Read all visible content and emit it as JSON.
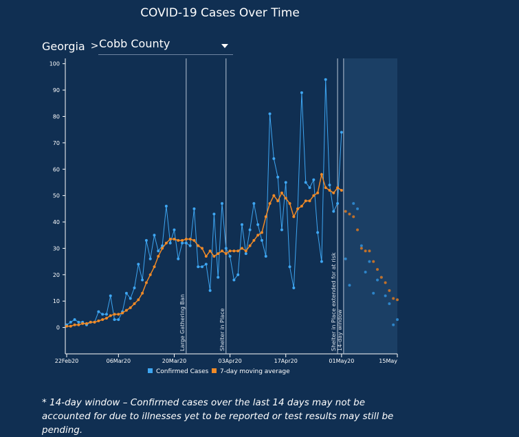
{
  "header": {
    "title": "COVID-19 Cases Over Time",
    "state": "Georgia",
    "separator": ">",
    "county": "Cobb County"
  },
  "footnote": "* 14-day window – Confirmed cases over the last 14 days may not be accounted for due to illnesses yet to be reported or test results may still be pending.",
  "colors": {
    "background": "#102f52",
    "confirmed": "#3ea6f2",
    "moving_avg": "#f08a27",
    "confirmed_faded": "#2d84c8",
    "moving_avg_faded": "#c0702a",
    "window_shade": "#1d4268"
  },
  "chart_data": {
    "type": "line",
    "x_type": "date",
    "start_date": "2020-02-22",
    "x": [
      "22Feb20",
      "23Feb20",
      "24Feb20",
      "25Feb20",
      "26Feb20",
      "27Feb20",
      "28Feb20",
      "29Feb20",
      "01Mar20",
      "02Mar20",
      "03Mar20",
      "04Mar20",
      "05Mar20",
      "06Mar20",
      "07Mar20",
      "08Mar20",
      "09Mar20",
      "10Mar20",
      "11Mar20",
      "12Mar20",
      "13Mar20",
      "14Mar20",
      "15Mar20",
      "16Mar20",
      "17Mar20",
      "18Mar20",
      "19Mar20",
      "20Mar20",
      "21Mar20",
      "22Mar20",
      "23Mar20",
      "24Mar20",
      "25Mar20",
      "26Mar20",
      "27Mar20",
      "28Mar20",
      "29Mar20",
      "30Mar20",
      "31Mar20",
      "01Apr20",
      "02Apr20",
      "03Apr20",
      "04Apr20",
      "05Apr20",
      "06Apr20",
      "07Apr20",
      "08Apr20",
      "09Apr20",
      "10Apr20",
      "11Apr20",
      "12Apr20",
      "13Apr20",
      "14Apr20",
      "15Apr20",
      "16Apr20",
      "17Apr20",
      "18Apr20",
      "19Apr20",
      "20Apr20",
      "21Apr20",
      "22Apr20",
      "23Apr20",
      "24Apr20",
      "25Apr20",
      "26Apr20",
      "27Apr20",
      "28Apr20",
      "29Apr20",
      "30Apr20",
      "01May20",
      "02May20",
      "03May20",
      "04May20",
      "05May20",
      "06May20",
      "07May20",
      "08May20",
      "09May20",
      "10May20",
      "11May20",
      "12May20",
      "13May20",
      "14May20",
      "15May20"
    ],
    "series": [
      {
        "name": "Confirmed Cases",
        "values": [
          1,
          2,
          3,
          2,
          2,
          1,
          2,
          2,
          6,
          5,
          5,
          12,
          3,
          3,
          6,
          13,
          11,
          15,
          24,
          18,
          33,
          26,
          35,
          29,
          31,
          46,
          32,
          37,
          26,
          32,
          32,
          31,
          45,
          23,
          23,
          24,
          14,
          43,
          19,
          47,
          30,
          27,
          18,
          20,
          39,
          28,
          37,
          47,
          39,
          33,
          27,
          81,
          64,
          57,
          37,
          55,
          23,
          15,
          45,
          89,
          55,
          53,
          56,
          36,
          25,
          94,
          54,
          44,
          47,
          74,
          26,
          16,
          47,
          45,
          31,
          21,
          25,
          13,
          18,
          19,
          12,
          9,
          1,
          3
        ]
      },
      {
        "name": "7-day moving average",
        "values": [
          0.5,
          0.5,
          1,
          1,
          1.5,
          1.5,
          2,
          2,
          2.5,
          3,
          3.5,
          4.5,
          5,
          5,
          5.5,
          6.5,
          7.5,
          9,
          10.5,
          13,
          17,
          20,
          23,
          27,
          30,
          32,
          33.5,
          33.5,
          33,
          33,
          33.5,
          33.5,
          33,
          31,
          30,
          27,
          29,
          27,
          28,
          29,
          28,
          29,
          29,
          29,
          30,
          29,
          31,
          33,
          35,
          36,
          42,
          47,
          50,
          48,
          51,
          49,
          47,
          42,
          45,
          46,
          48,
          48,
          50,
          51,
          58,
          53,
          52,
          51,
          53,
          52,
          44,
          43,
          42,
          37,
          30,
          29,
          29,
          25,
          22,
          19,
          17,
          14,
          11,
          10.5
        ]
      }
    ],
    "window_start": "01May20",
    "window_end": "15May20",
    "x_ticks": [
      "22Feb20",
      "06Mar20",
      "20Mar20",
      "03Apr20",
      "17Apr20",
      "01May20",
      "15May"
    ],
    "ylim": [
      -10,
      102
    ],
    "y_ticks": [
      0,
      10,
      20,
      30,
      40,
      50,
      60,
      70,
      80,
      90,
      100
    ],
    "annotations": [
      {
        "label": "Large Gathering Ban",
        "date": "23Mar20"
      },
      {
        "label": "Shelter in Place",
        "date": "02Apr20"
      },
      {
        "label": "Shelter in Place extended for at risk",
        "date": "30Apr20"
      },
      {
        "label": "14-day window",
        "date": "01May20"
      }
    ],
    "legend_position": "bottom-center",
    "title": "",
    "xlabel": "",
    "ylabel": ""
  }
}
